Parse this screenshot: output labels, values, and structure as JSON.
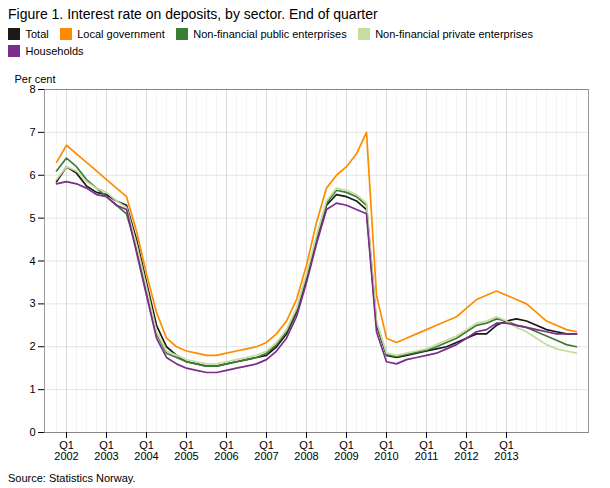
{
  "chart_data": {
    "type": "line",
    "title": "Figure 1. Interest rate on deposits, by sector. End of quarter",
    "ylabel": "Per cent",
    "source": "Source: Statistics Norway.",
    "categories": [
      null,
      "Q1\n2002",
      null,
      null,
      null,
      "Q1\n2003",
      null,
      null,
      null,
      "Q1\n2004",
      null,
      null,
      null,
      "Q1\n2005",
      null,
      null,
      null,
      "Q1\n2006",
      null,
      null,
      null,
      "Q1\n2007",
      null,
      null,
      null,
      "Q1\n2008",
      null,
      null,
      null,
      "Q1\n2009",
      null,
      null,
      null,
      "Q1\n2010",
      null,
      null,
      null,
      "Q1\n2011",
      null,
      null,
      null,
      "Q1\n2012",
      null,
      null,
      null,
      "Q1\n2013",
      null,
      null,
      null,
      null,
      null,
      null,
      null
    ],
    "ylim": [
      0,
      8
    ],
    "yticks": [
      0,
      1,
      2,
      3,
      4,
      5,
      6,
      7,
      8
    ],
    "grid": true,
    "legend": "upper left",
    "series": [
      {
        "name": "Total",
        "color": "#1a1a1a",
        "values": [
          5.85,
          6.2,
          6.05,
          5.75,
          5.6,
          5.55,
          5.4,
          5.3,
          4.5,
          3.5,
          2.5,
          2.0,
          1.8,
          1.65,
          1.6,
          1.55,
          1.55,
          1.6,
          1.65,
          1.7,
          1.75,
          1.8,
          2.0,
          2.3,
          2.8,
          3.6,
          4.5,
          5.3,
          5.55,
          5.5,
          5.4,
          5.2,
          2.5,
          1.8,
          1.75,
          1.8,
          1.85,
          1.9,
          1.95,
          2.0,
          2.1,
          2.2,
          2.3,
          2.3,
          2.5,
          2.6,
          2.65,
          2.6,
          2.5,
          2.4,
          2.35,
          2.3,
          2.3
        ]
      },
      {
        "name": "Local government",
        "color": "#ff8c00",
        "values": [
          6.3,
          6.7,
          6.5,
          6.3,
          6.1,
          5.9,
          5.7,
          5.5,
          4.7,
          3.7,
          2.8,
          2.2,
          2.0,
          1.9,
          1.85,
          1.8,
          1.8,
          1.85,
          1.9,
          1.95,
          2.0,
          2.1,
          2.3,
          2.6,
          3.1,
          3.9,
          4.9,
          5.7,
          6.0,
          6.2,
          6.5,
          7.0,
          3.2,
          2.2,
          2.1,
          2.2,
          2.3,
          2.4,
          2.5,
          2.6,
          2.7,
          2.9,
          3.1,
          3.2,
          3.3,
          3.2,
          3.1,
          3.0,
          2.8,
          2.6,
          2.5,
          2.4,
          2.35
        ]
      },
      {
        "name": "Non-financial public enterprises",
        "color": "#3a7d34",
        "values": [
          6.1,
          6.4,
          6.2,
          5.9,
          5.7,
          5.5,
          5.3,
          5.1,
          4.3,
          3.3,
          2.3,
          1.85,
          1.75,
          1.65,
          1.6,
          1.55,
          1.55,
          1.6,
          1.65,
          1.7,
          1.75,
          1.85,
          2.05,
          2.35,
          2.85,
          3.65,
          4.55,
          5.35,
          5.65,
          5.6,
          5.5,
          5.3,
          2.55,
          1.82,
          1.77,
          1.82,
          1.87,
          1.92,
          2.0,
          2.1,
          2.2,
          2.35,
          2.5,
          2.55,
          2.65,
          2.6,
          2.5,
          2.45,
          2.35,
          2.25,
          2.15,
          2.05,
          2.0
        ]
      },
      {
        "name": "Non-financial private enterprises",
        "color": "#c8dba0",
        "values": [
          5.9,
          6.2,
          6.1,
          5.85,
          5.7,
          5.6,
          5.4,
          5.25,
          4.4,
          3.4,
          2.35,
          1.9,
          1.8,
          1.7,
          1.65,
          1.6,
          1.6,
          1.65,
          1.7,
          1.75,
          1.8,
          1.9,
          2.1,
          2.4,
          2.9,
          3.7,
          4.6,
          5.4,
          5.7,
          5.65,
          5.55,
          5.35,
          2.6,
          1.85,
          1.8,
          1.85,
          1.9,
          1.95,
          2.05,
          2.15,
          2.25,
          2.4,
          2.55,
          2.6,
          2.7,
          2.6,
          2.45,
          2.35,
          2.2,
          2.05,
          1.95,
          1.9,
          1.85
        ]
      },
      {
        "name": "Households",
        "color": "#7b2d8b",
        "values": [
          5.8,
          5.85,
          5.8,
          5.7,
          5.55,
          5.5,
          5.3,
          5.2,
          4.2,
          3.2,
          2.2,
          1.75,
          1.6,
          1.5,
          1.45,
          1.4,
          1.4,
          1.45,
          1.5,
          1.55,
          1.6,
          1.7,
          1.9,
          2.2,
          2.7,
          3.5,
          4.4,
          5.2,
          5.35,
          5.3,
          5.2,
          5.1,
          2.35,
          1.65,
          1.6,
          1.7,
          1.75,
          1.8,
          1.85,
          1.95,
          2.05,
          2.2,
          2.35,
          2.4,
          2.55,
          2.55,
          2.5,
          2.45,
          2.4,
          2.35,
          2.3,
          2.3,
          2.3
        ]
      }
    ]
  }
}
